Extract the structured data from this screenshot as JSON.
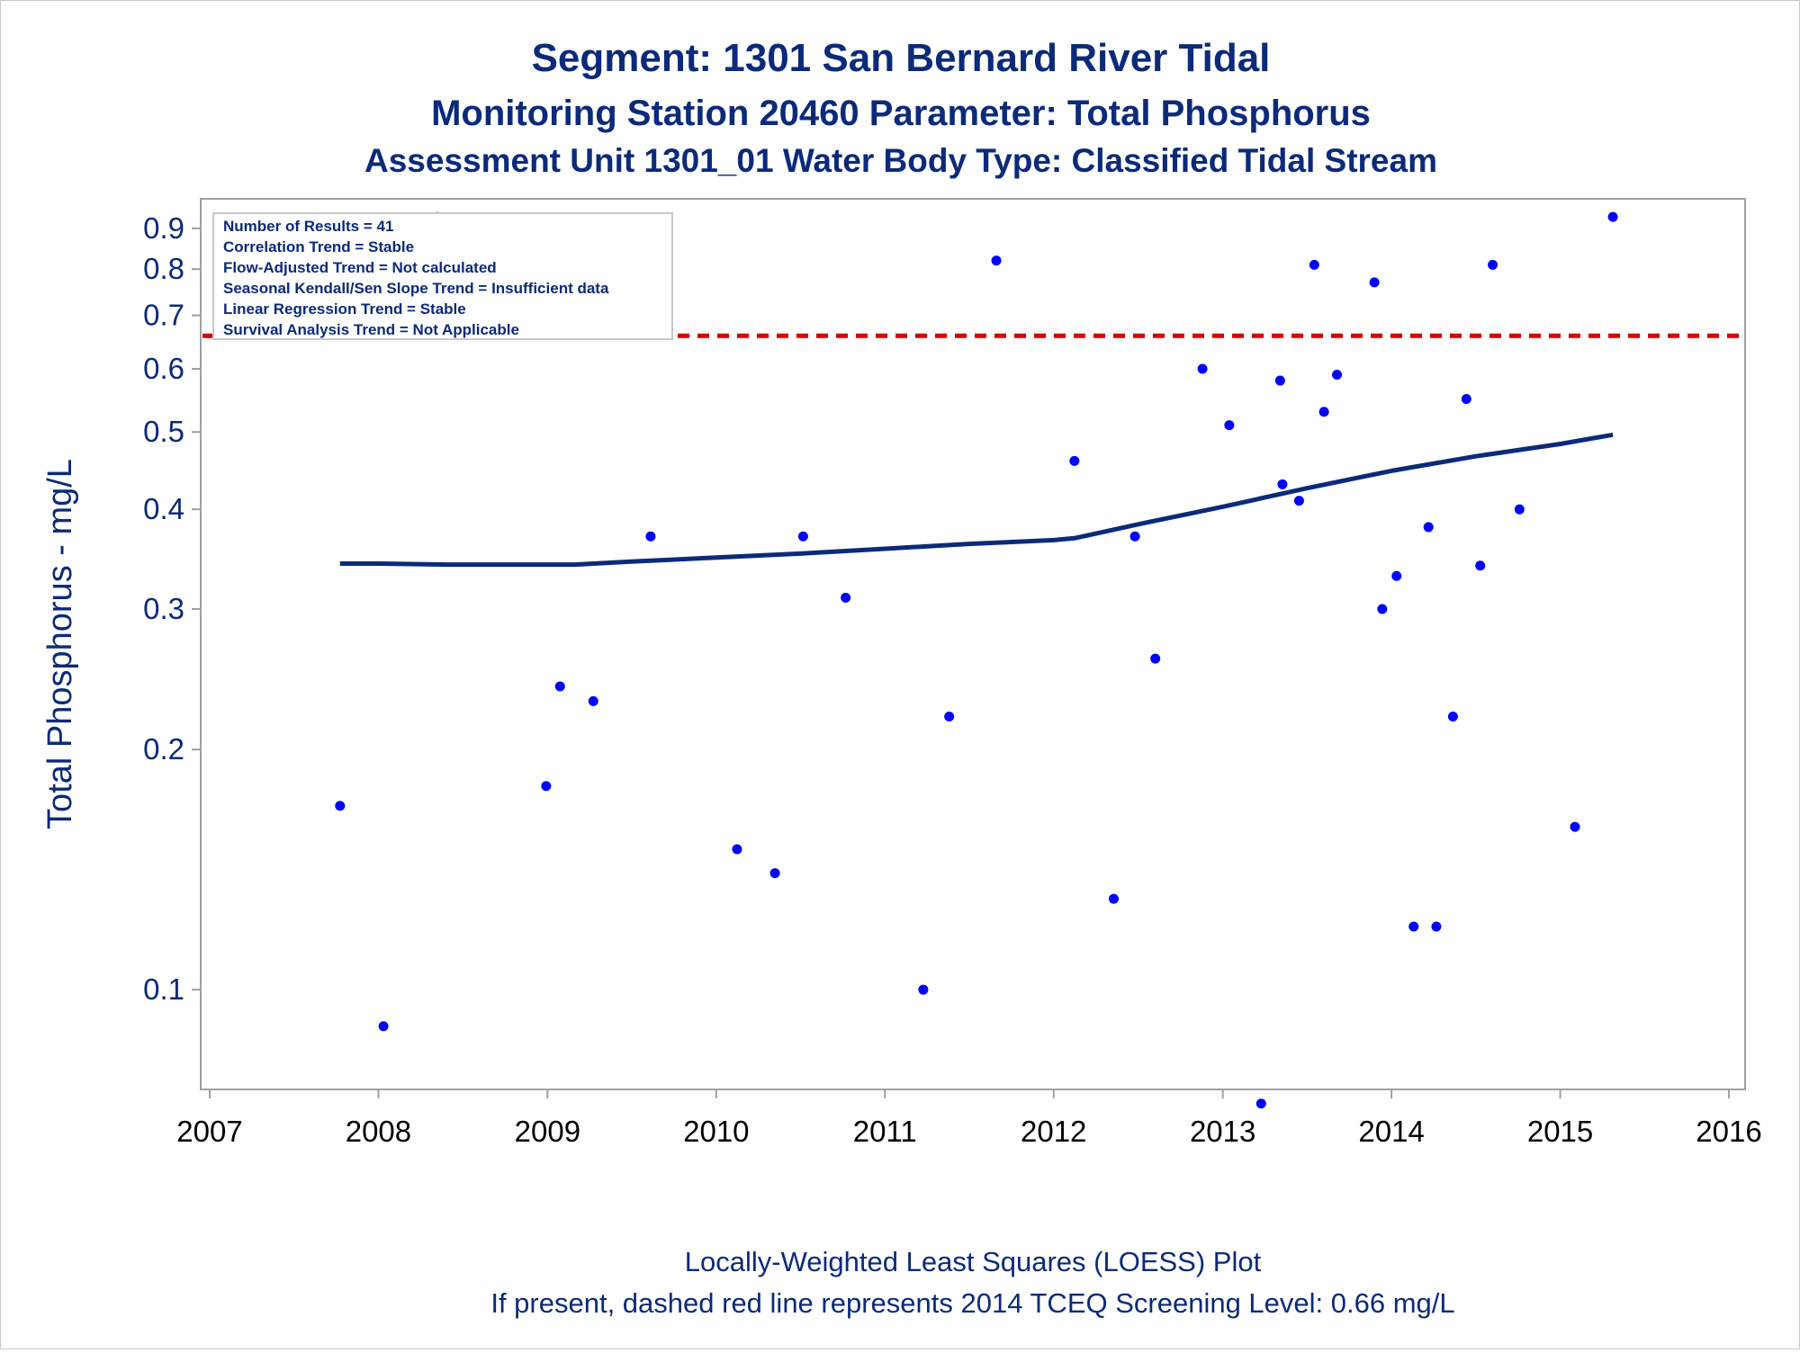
{
  "chart_data": {
    "type": "scatter",
    "title": "Segment: 1301  San Bernard River Tidal",
    "subtitle": "Monitoring Station 20460 Parameter: Total Phosphorus",
    "subtitle2": "Assessment Unit 1301_01   Water Body Type: Classified Tidal Stream",
    "ylabel": "Total Phosphorus - mg/L",
    "xlabel": "",
    "yscale": "log",
    "ylim": [
      0.075,
      0.98
    ],
    "xlim": [
      "2007-01-01",
      "2016-01-01"
    ],
    "x_ticks": [
      "2007",
      "2008",
      "2009",
      "2010",
      "2011",
      "2012",
      "2013",
      "2014",
      "2015",
      "2016"
    ],
    "y_ticks": [
      {
        "value": 0.1,
        "label": "0.1"
      },
      {
        "value": 0.2,
        "label": "0.2"
      },
      {
        "value": 0.3,
        "label": "0.3"
      },
      {
        "value": 0.4,
        "label": "0.4"
      },
      {
        "value": 0.5,
        "label": "0.5"
      },
      {
        "value": 0.6,
        "label": "0.6"
      },
      {
        "value": 0.7,
        "label": "0.7"
      },
      {
        "value": 0.8,
        "label": "0.8"
      },
      {
        "value": 0.9,
        "label": "0.9"
      }
    ],
    "grid": false,
    "points": [
      {
        "x": "2007-10-10",
        "y": 0.17
      },
      {
        "x": "2008-01-12",
        "y": 0.09
      },
      {
        "x": "2008-05-08",
        "y": 0.93
      },
      {
        "x": "2008-10-05",
        "y": 0.77
      },
      {
        "x": "2008-12-29",
        "y": 0.18
      },
      {
        "x": "2009-01-28",
        "y": 0.24
      },
      {
        "x": "2009-04-10",
        "y": 0.23
      },
      {
        "x": "2009-08-12",
        "y": 0.37
      },
      {
        "x": "2010-02-15",
        "y": 0.15
      },
      {
        "x": "2010-05-08",
        "y": 0.14
      },
      {
        "x": "2010-07-08",
        "y": 0.37
      },
      {
        "x": "2010-10-08",
        "y": 0.31
      },
      {
        "x": "2011-03-25",
        "y": 0.1
      },
      {
        "x": "2011-05-20",
        "y": 0.22
      },
      {
        "x": "2011-08-30",
        "y": 0.82
      },
      {
        "x": "2012-02-15",
        "y": 0.46
      },
      {
        "x": "2012-05-10",
        "y": 0.13
      },
      {
        "x": "2012-06-25",
        "y": 0.37
      },
      {
        "x": "2012-08-08",
        "y": 0.26
      },
      {
        "x": "2012-11-18",
        "y": 0.6
      },
      {
        "x": "2013-01-15",
        "y": 0.51
      },
      {
        "x": "2013-03-25",
        "y": 0.072
      },
      {
        "x": "2013-05-05",
        "y": 0.58
      },
      {
        "x": "2013-05-10",
        "y": 0.43
      },
      {
        "x": "2013-06-15",
        "y": 0.41
      },
      {
        "x": "2013-07-18",
        "y": 0.81
      },
      {
        "x": "2013-08-08",
        "y": 0.53
      },
      {
        "x": "2013-09-05",
        "y": 0.59
      },
      {
        "x": "2013-11-25",
        "y": 0.77
      },
      {
        "x": "2013-12-12",
        "y": 0.3
      },
      {
        "x": "2014-01-12",
        "y": 0.33
      },
      {
        "x": "2014-02-18",
        "y": 0.12
      },
      {
        "x": "2014-03-22",
        "y": 0.38
      },
      {
        "x": "2014-04-08",
        "y": 0.12
      },
      {
        "x": "2014-05-14",
        "y": 0.22
      },
      {
        "x": "2014-06-12",
        "y": 0.55
      },
      {
        "x": "2014-07-12",
        "y": 0.34
      },
      {
        "x": "2014-08-08",
        "y": 0.81
      },
      {
        "x": "2014-10-05",
        "y": 0.4
      },
      {
        "x": "2015-02-02",
        "y": 0.16
      },
      {
        "x": "2015-04-25",
        "y": 0.93
      }
    ],
    "loess": [
      {
        "x": "2007-10-10",
        "y": 0.342
      },
      {
        "x": "2008-01-05",
        "y": 0.342
      },
      {
        "x": "2008-06-01",
        "y": 0.341
      },
      {
        "x": "2009-01-01",
        "y": 0.341
      },
      {
        "x": "2009-03-01",
        "y": 0.341
      },
      {
        "x": "2009-07-01",
        "y": 0.344
      },
      {
        "x": "2010-01-01",
        "y": 0.348
      },
      {
        "x": "2010-07-01",
        "y": 0.352
      },
      {
        "x": "2011-01-01",
        "y": 0.357
      },
      {
        "x": "2011-07-01",
        "y": 0.362
      },
      {
        "x": "2012-01-01",
        "y": 0.366
      },
      {
        "x": "2012-02-15",
        "y": 0.368
      },
      {
        "x": "2012-07-01",
        "y": 0.383
      },
      {
        "x": "2013-01-01",
        "y": 0.403
      },
      {
        "x": "2013-07-01",
        "y": 0.425
      },
      {
        "x": "2014-01-01",
        "y": 0.447
      },
      {
        "x": "2014-07-01",
        "y": 0.466
      },
      {
        "x": "2015-01-01",
        "y": 0.483
      },
      {
        "x": "2015-04-25",
        "y": 0.496
      }
    ],
    "reference_line": {
      "y": 0.66,
      "color": "#d40000",
      "style": "dashed"
    },
    "inset_box": {
      "lines": [
        "Number of Results = 41",
        "Correlation Trend = Stable",
        "Flow-Adjusted Trend = Not calculated",
        "Seasonal Kendall/Sen Slope Trend = Insufficient data",
        "Linear Regression Trend = Stable",
        "Survival Analysis Trend = Not Applicable"
      ],
      "placement": "top-left"
    },
    "footnotes": [
      "Locally-Weighted Least Squares (LOESS) Plot",
      "If present, dashed red line represents 2014 TCEQ Screening Level: 0.66 mg/L"
    ],
    "colors": {
      "points": "#0000ff",
      "loess": "#0b2a7a",
      "text": "#0b2a7a",
      "axis": "#a0a0a0"
    }
  }
}
